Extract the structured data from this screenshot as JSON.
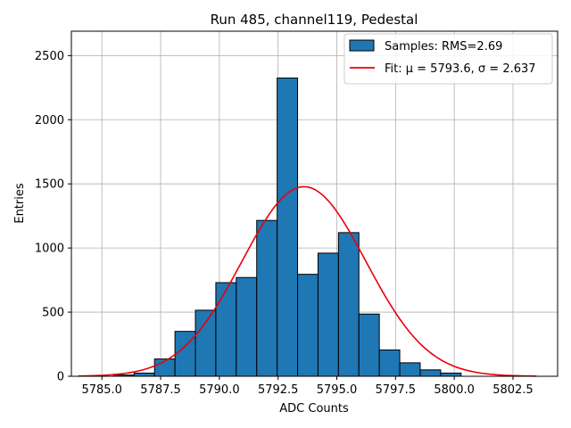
{
  "chart_data": {
    "type": "bar",
    "title": "Run 485, channel119, Pedestal",
    "xlabel": "ADC Counts",
    "ylabel": "Entries",
    "xlim": [
      5783.7,
      5804.4
    ],
    "ylim": [
      0,
      2690
    ],
    "x_ticks": [
      5785.0,
      5787.5,
      5790.0,
      5792.5,
      5795.0,
      5797.5,
      5800.0,
      5802.5
    ],
    "x_tick_labels": [
      "5785.0",
      "5787.5",
      "5790.0",
      "5792.5",
      "5795.0",
      "5797.5",
      "5800.0",
      "5802.5"
    ],
    "y_ticks": [
      0,
      500,
      1000,
      1500,
      2000,
      2500
    ],
    "y_tick_labels": [
      "0",
      "500",
      "1000",
      "1500",
      "2000",
      "2500"
    ],
    "grid": true,
    "legend_position": "top-right",
    "bin_edges": [
      5785.5,
      5786.37,
      5787.24,
      5788.11,
      5788.98,
      5789.85,
      5790.72,
      5791.59,
      5792.46,
      5793.33,
      5794.2,
      5795.07,
      5795.94,
      5796.81,
      5797.68,
      5798.55,
      5799.42,
      5800.29,
      5801.16,
      5802.03
    ],
    "counts": [
      10,
      25,
      135,
      350,
      515,
      730,
      770,
      1215,
      2325,
      795,
      960,
      1120,
      485,
      205,
      105,
      50,
      25,
      0,
      0
    ],
    "series": [
      {
        "name": "Samples: RMS=2.69",
        "type": "histogram",
        "color": "#1f77b4",
        "edgecolor": "#000000"
      },
      {
        "name": "Fit: μ = 5793.6, σ = 2.637",
        "type": "line",
        "color": "#e8000b",
        "mu": 5793.6,
        "sigma": 2.637,
        "amplitude": 1478,
        "x_range": [
          5784.0,
          5803.5
        ]
      }
    ]
  }
}
